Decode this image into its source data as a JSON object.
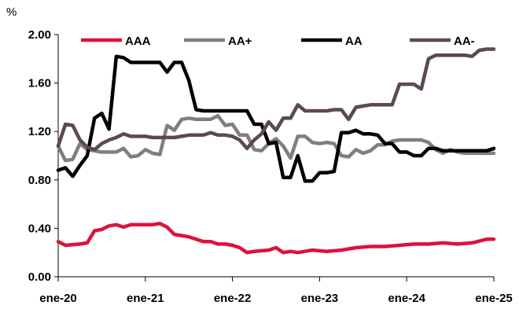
{
  "chart_data": {
    "type": "line",
    "title": "",
    "ylabel": "%",
    "xlabel": "",
    "ylim": [
      0,
      2.0
    ],
    "yticks": [
      "0.00",
      "0.40",
      "0.80",
      "1.20",
      "1.60",
      "2.00"
    ],
    "xticks": [
      "ene-20",
      "ene-21",
      "ene-22",
      "ene-23",
      "ene-24",
      "ene-25"
    ],
    "x_range": [
      "2020-01",
      "2025-01"
    ],
    "grid": false,
    "legend_position": "top",
    "series": [
      {
        "name": "AAA",
        "color": "#e0103c",
        "x": [
          "2020-01",
          "2020-02",
          "2020-04",
          "2020-05",
          "2020-06",
          "2020-07",
          "2020-08",
          "2020-09",
          "2020-10",
          "2020-11",
          "2020-12",
          "2021-01",
          "2021-02",
          "2021-03",
          "2021-04",
          "2021-05",
          "2021-06",
          "2021-07",
          "2021-08",
          "2021-09",
          "2021-10",
          "2021-11",
          "2021-12",
          "2022-01",
          "2022-02",
          "2022-03",
          "2022-04",
          "2022-06",
          "2022-07",
          "2022-08",
          "2022-09",
          "2022-10",
          "2022-11",
          "2022-12",
          "2023-02",
          "2023-04",
          "2023-06",
          "2023-08",
          "2023-10",
          "2023-12",
          "2024-02",
          "2024-04",
          "2024-06",
          "2024-08",
          "2024-10",
          "2024-12",
          "2025-01"
        ],
        "values": [
          0.29,
          0.26,
          0.27,
          0.28,
          0.38,
          0.39,
          0.42,
          0.43,
          0.41,
          0.43,
          0.43,
          0.43,
          0.43,
          0.44,
          0.41,
          0.35,
          0.34,
          0.33,
          0.31,
          0.29,
          0.29,
          0.27,
          0.27,
          0.26,
          0.24,
          0.2,
          0.21,
          0.22,
          0.24,
          0.2,
          0.21,
          0.2,
          0.21,
          0.22,
          0.21,
          0.22,
          0.24,
          0.25,
          0.25,
          0.26,
          0.27,
          0.27,
          0.28,
          0.27,
          0.28,
          0.31,
          0.31
        ]
      },
      {
        "name": "AA+",
        "color": "#7f7f7f",
        "x": [
          "2020-01",
          "2020-02",
          "2020-03",
          "2020-04",
          "2020-05",
          "2020-06",
          "2020-07",
          "2020-08",
          "2020-09",
          "2020-10",
          "2020-11",
          "2020-12",
          "2021-01",
          "2021-02",
          "2021-03",
          "2021-04",
          "2021-05",
          "2021-06",
          "2021-07",
          "2021-08",
          "2021-09",
          "2021-10",
          "2021-11",
          "2021-12",
          "2022-01",
          "2022-02",
          "2022-03",
          "2022-04",
          "2022-05",
          "2022-06",
          "2022-07",
          "2022-08",
          "2022-09",
          "2022-10",
          "2022-11",
          "2022-12",
          "2023-01",
          "2023-02",
          "2023-03",
          "2023-04",
          "2023-05",
          "2023-06",
          "2023-07",
          "2023-08",
          "2023-09",
          "2023-10",
          "2023-11",
          "2023-12",
          "2024-01",
          "2024-02",
          "2024-03",
          "2024-04",
          "2024-05",
          "2024-06",
          "2024-07",
          "2024-08",
          "2024-09",
          "2024-10",
          "2024-11",
          "2024-12",
          "2025-01"
        ],
        "values": [
          1.08,
          0.96,
          0.97,
          1.1,
          1.05,
          1.04,
          1.03,
          1.03,
          1.03,
          1.06,
          0.99,
          1.0,
          1.05,
          1.02,
          1.01,
          1.25,
          1.21,
          1.3,
          1.31,
          1.3,
          1.3,
          1.3,
          1.33,
          1.25,
          1.26,
          1.17,
          1.17,
          1.05,
          1.04,
          1.1,
          1.14,
          1.08,
          0.98,
          1.16,
          1.16,
          1.11,
          1.1,
          1.11,
          1.1,
          1.0,
          0.99,
          1.05,
          1.02,
          1.04,
          1.09,
          1.09,
          1.12,
          1.13,
          1.13,
          1.13,
          1.13,
          1.11,
          1.05,
          1.02,
          1.05,
          1.03,
          1.02,
          1.02,
          1.02,
          1.02,
          1.02
        ]
      },
      {
        "name": "AA",
        "color": "#000000",
        "x": [
          "2020-01",
          "2020-02",
          "2020-03",
          "2020-04",
          "2020-05",
          "2020-06",
          "2020-07",
          "2020-08",
          "2020-09",
          "2020-10",
          "2020-11",
          "2020-12",
          "2021-01",
          "2021-02",
          "2021-03",
          "2021-04",
          "2021-05",
          "2021-06",
          "2021-07",
          "2021-08",
          "2021-09",
          "2021-10",
          "2021-11",
          "2021-12",
          "2022-01",
          "2022-02",
          "2022-03",
          "2022-04",
          "2022-05",
          "2022-06",
          "2022-07",
          "2022-08",
          "2022-09",
          "2022-10",
          "2022-11",
          "2022-12",
          "2023-01",
          "2023-02",
          "2023-03",
          "2023-04",
          "2023-05",
          "2023-06",
          "2023-07",
          "2023-08",
          "2023-09",
          "2023-10",
          "2023-11",
          "2023-12",
          "2024-01",
          "2024-02",
          "2024-03",
          "2024-04",
          "2024-05",
          "2024-06",
          "2024-07",
          "2024-08",
          "2024-09",
          "2024-10",
          "2024-11",
          "2024-12",
          "2025-01"
        ],
        "values": [
          0.88,
          0.9,
          0.83,
          0.92,
          1.0,
          1.31,
          1.35,
          1.22,
          1.82,
          1.81,
          1.77,
          1.77,
          1.77,
          1.77,
          1.77,
          1.69,
          1.77,
          1.77,
          1.62,
          1.38,
          1.37,
          1.37,
          1.37,
          1.37,
          1.37,
          1.37,
          1.37,
          1.26,
          1.26,
          1.1,
          1.11,
          0.82,
          0.82,
          1.0,
          0.79,
          0.79,
          0.86,
          0.86,
          0.87,
          1.19,
          1.19,
          1.21,
          1.18,
          1.18,
          1.17,
          1.1,
          1.1,
          1.03,
          1.03,
          1.0,
          1.0,
          1.06,
          1.06,
          1.04,
          1.04,
          1.04,
          1.04,
          1.04,
          1.04,
          1.04,
          1.06
        ]
      },
      {
        "name": "AA-",
        "color": "#5a4a4f",
        "x": [
          "2020-01",
          "2020-02",
          "2020-03",
          "2020-04",
          "2020-05",
          "2020-06",
          "2020-07",
          "2020-08",
          "2020-09",
          "2020-10",
          "2020-11",
          "2020-12",
          "2021-01",
          "2021-02",
          "2021-03",
          "2021-04",
          "2021-05",
          "2021-06",
          "2021-07",
          "2021-08",
          "2021-09",
          "2021-10",
          "2021-11",
          "2021-12",
          "2022-01",
          "2022-02",
          "2022-03",
          "2022-04",
          "2022-05",
          "2022-06",
          "2022-07",
          "2022-08",
          "2022-09",
          "2022-10",
          "2022-11",
          "2022-12",
          "2023-01",
          "2023-02",
          "2023-03",
          "2023-04",
          "2023-05",
          "2023-06",
          "2023-07",
          "2023-08",
          "2023-09",
          "2023-10",
          "2023-11",
          "2023-12",
          "2024-01",
          "2024-02",
          "2024-03",
          "2024-04",
          "2024-05",
          "2024-06",
          "2024-07",
          "2024-08",
          "2024-09",
          "2024-10",
          "2024-11",
          "2024-12",
          "2025-01"
        ],
        "values": [
          1.08,
          1.26,
          1.25,
          1.13,
          1.07,
          1.05,
          1.1,
          1.13,
          1.15,
          1.18,
          1.16,
          1.16,
          1.16,
          1.15,
          1.15,
          1.15,
          1.15,
          1.16,
          1.17,
          1.17,
          1.17,
          1.19,
          1.17,
          1.17,
          1.16,
          1.13,
          1.06,
          1.13,
          1.18,
          1.28,
          1.21,
          1.31,
          1.31,
          1.42,
          1.37,
          1.37,
          1.37,
          1.37,
          1.38,
          1.38,
          1.3,
          1.4,
          1.41,
          1.42,
          1.42,
          1.42,
          1.42,
          1.59,
          1.59,
          1.59,
          1.55,
          1.8,
          1.83,
          1.83,
          1.83,
          1.83,
          1.83,
          1.82,
          1.87,
          1.88,
          1.88
        ]
      }
    ]
  }
}
